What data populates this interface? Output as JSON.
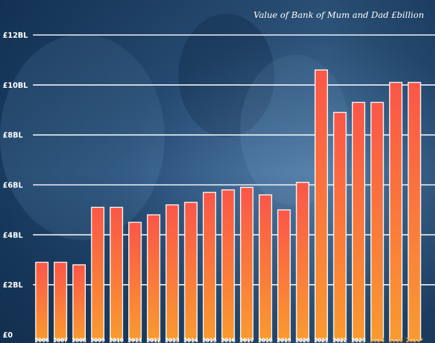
{
  "chart_data": {
    "type": "bar",
    "title": "Value of Bank of Mum and Dad £billion",
    "categories": [
      "2006",
      "2007",
      "2008",
      "2009",
      "2010",
      "2011",
      "2012",
      "2013",
      "2014",
      "2015",
      "2016",
      "2017",
      "2018",
      "2019",
      "2020",
      "2021",
      "2022",
      "2023",
      "2024",
      "2025",
      "2026*"
    ],
    "values": [
      2.9,
      2.9,
      2.8,
      5.1,
      5.1,
      4.5,
      4.8,
      5.2,
      5.3,
      5.7,
      5.8,
      5.9,
      5.6,
      5.0,
      6.1,
      10.6,
      8.9,
      9.3,
      9.3,
      10.1,
      10.1
    ],
    "highlighted_categories": [
      "2024",
      "2025",
      "2026*"
    ],
    "ylim": [
      0,
      12
    ],
    "yticks": [
      {
        "value": 0,
        "label": "£0"
      },
      {
        "value": 2,
        "label": "£2BL"
      },
      {
        "value": 4,
        "label": "£4BL"
      },
      {
        "value": 6,
        "label": "£6BL"
      },
      {
        "value": 8,
        "label": "£8BL"
      },
      {
        "value": 10,
        "label": "£10BL"
      },
      {
        "value": 12,
        "label": "£12BL"
      }
    ],
    "grid": true,
    "colors": {
      "bar_top": "#fb5648",
      "bar_bottom": "#f99a30",
      "bar_border": "#ffffff",
      "grid": "#ffffff",
      "label": "#ffffff",
      "highlight_label": "#f7a43a",
      "background_dark": "#0f2d4d",
      "background_light": "#4d7aa8"
    }
  }
}
